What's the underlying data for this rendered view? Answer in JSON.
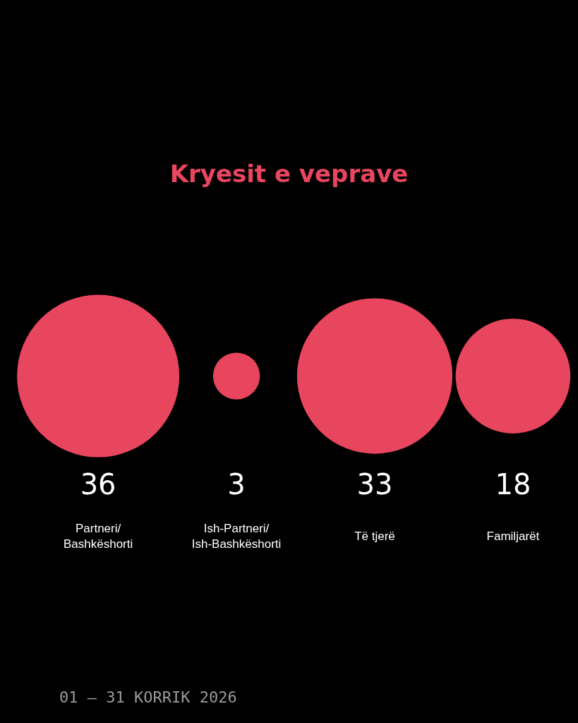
{
  "chart_data": {
    "type": "other",
    "title": "Kryesit e veprave",
    "categories": [
      "Partneri/\nBashkëshorti",
      "Ish-Partneri/\nIsh-Bashkëshorti",
      "Të tjerë",
      "Familjarët"
    ],
    "values": [
      36,
      3,
      33,
      18
    ],
    "color": "#e8455f",
    "data_labels": true,
    "annotations": [
      "01 – 31 KORRIK 2026"
    ]
  }
}
